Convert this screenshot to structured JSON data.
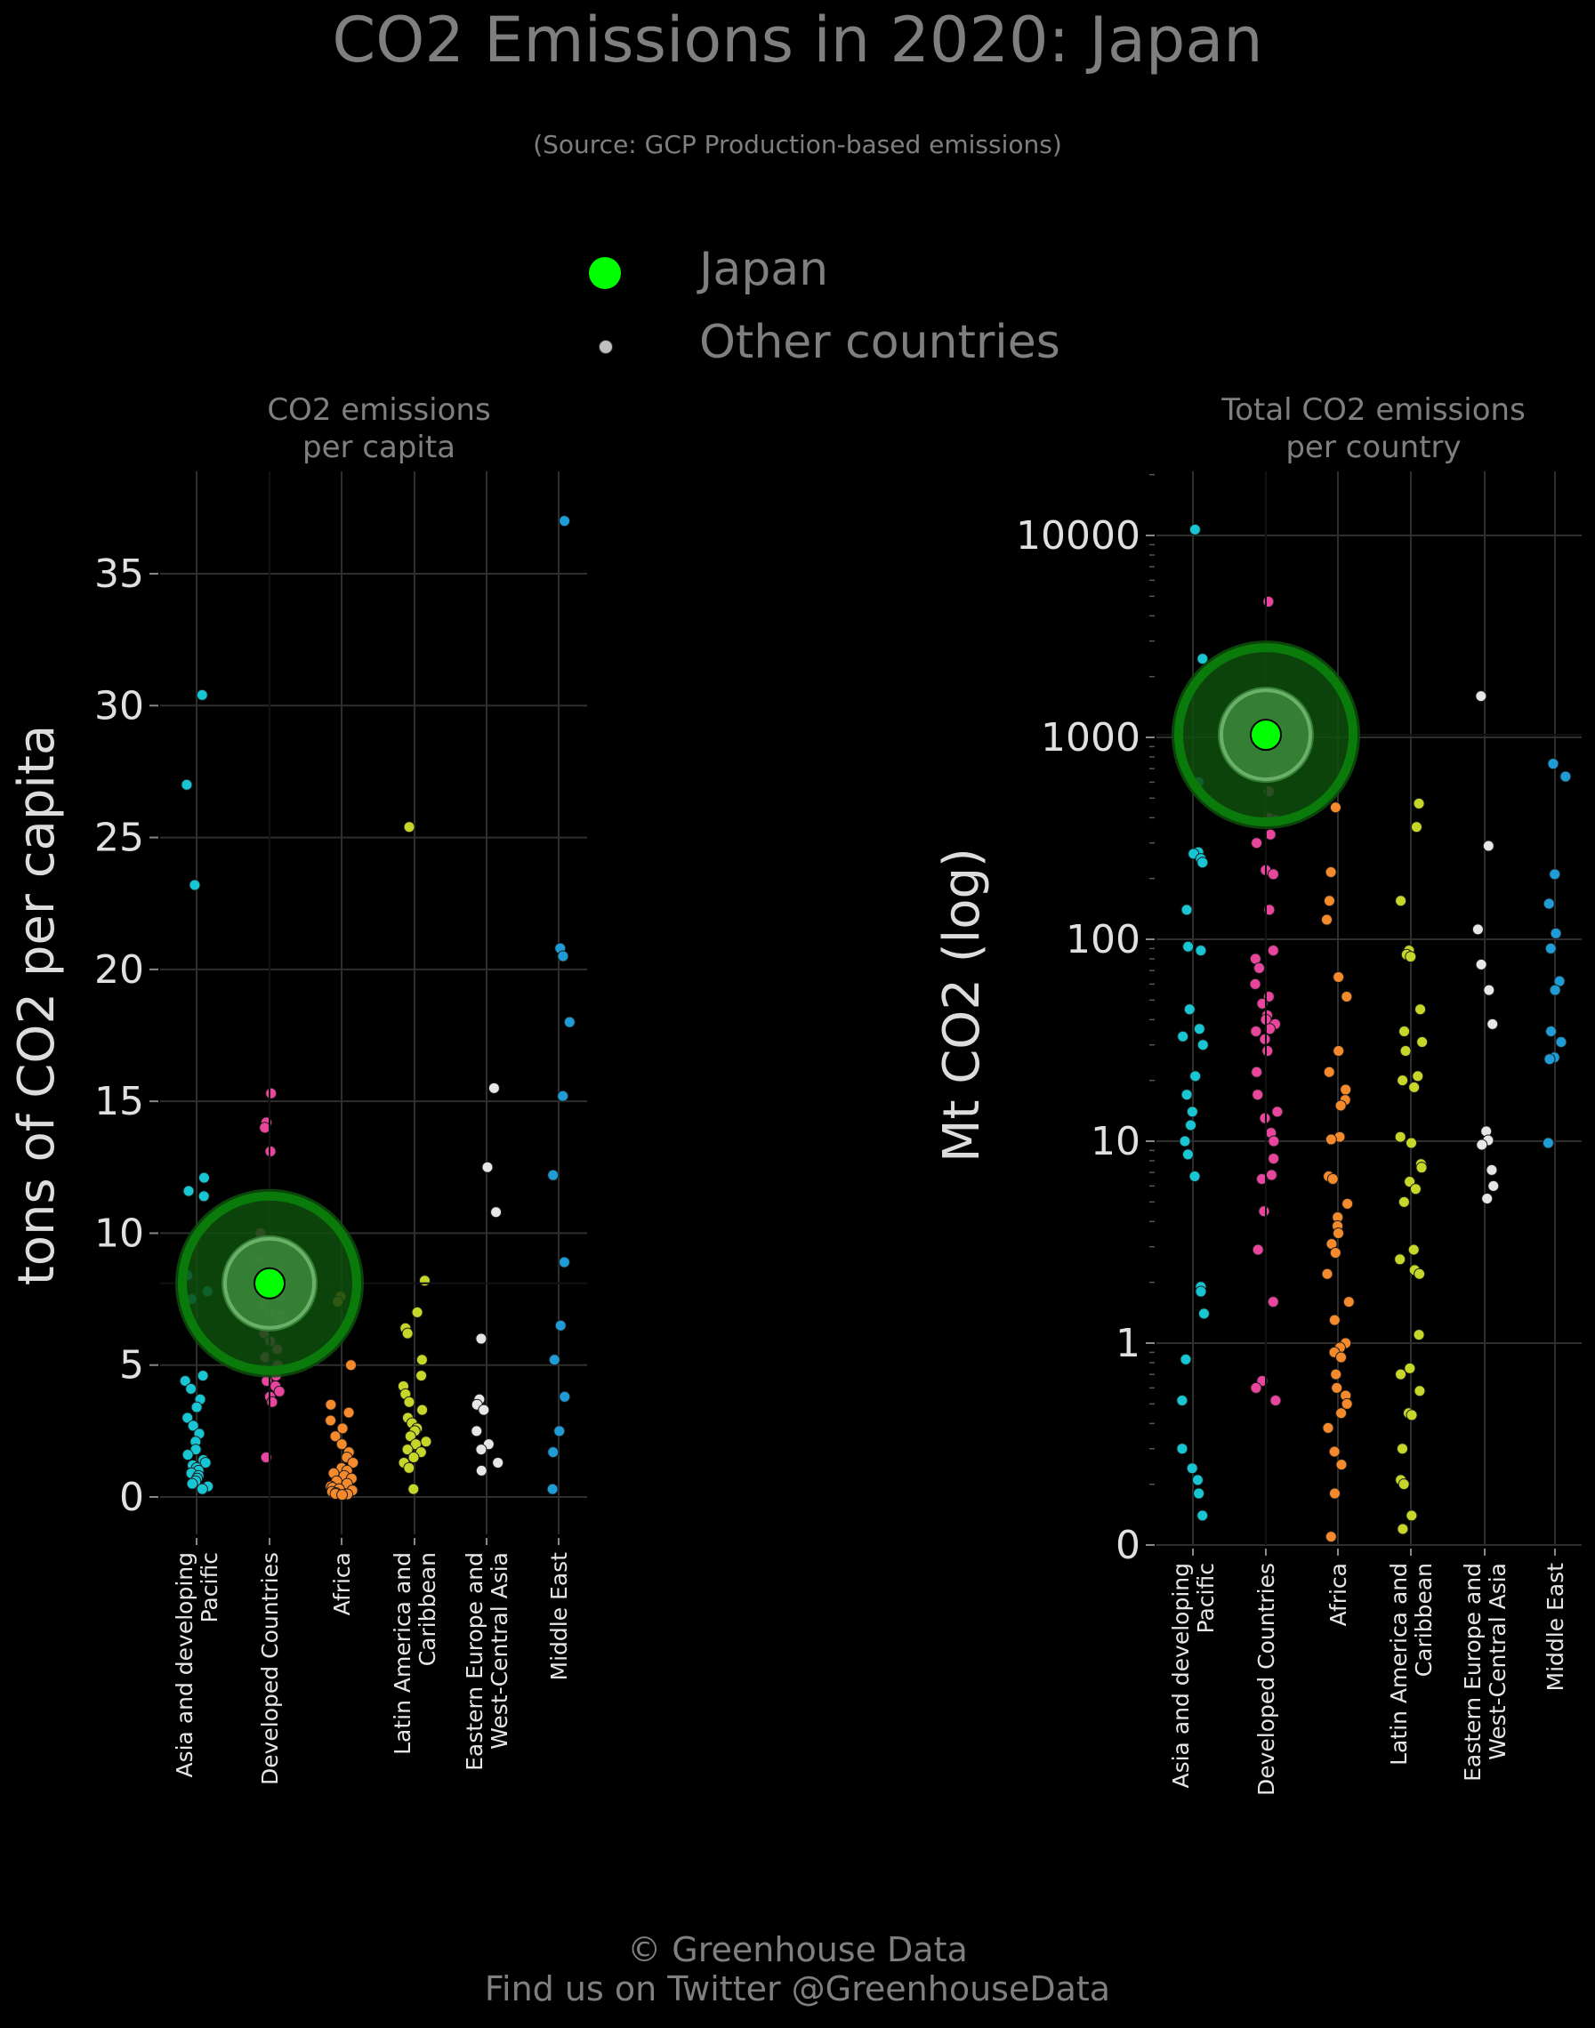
{
  "title": "CO2 Emissions in 2020: Japan",
  "subtitle": "(Source: GCP Production-based emissions)",
  "legend": {
    "highlight_label": "Japan",
    "other_label": "Other countries",
    "highlight_color": "#00ff00",
    "other_color": "#bfbfbf"
  },
  "footer": {
    "line1": "© Greenhouse Data",
    "line2": "Find us on Twitter @GreenhouseData"
  },
  "colors": {
    "Asia and developing Pacific": "#17c6d2",
    "Developed Countries": "#e8459c",
    "Africa": "#f58a2c",
    "Latin America and Caribbean": "#c7d72a",
    "Eastern Europe and West-Central Asia": "#e6e6e6",
    "Middle East": "#1f9bd6"
  },
  "chart_data": [
    {
      "type": "scatter",
      "title": "CO2 emissions\nper capita",
      "ylabel": "tons of CO2 per capita",
      "ylim": [
        0,
        38
      ],
      "yticks": [
        "0",
        "5",
        "10",
        "15",
        "20",
        "25",
        "30",
        "35"
      ],
      "scale": "linear",
      "grid": true,
      "categories": [
        "Asia and developing\nPacific",
        "Developed Countries",
        "Africa",
        "Latin America and\nCaribbean",
        "Eastern Europe and\nWest-Central Asia",
        "Middle East"
      ],
      "highlight": {
        "name": "Japan",
        "category": "Developed Countries",
        "value": 8.1
      },
      "series": [
        {
          "name": "Asia and developing Pacific",
          "values": [
            30.4,
            27.0,
            23.2,
            12.1,
            11.6,
            11.4,
            8.4,
            7.8,
            7.5,
            4.6,
            4.4,
            4.1,
            3.7,
            3.4,
            3.0,
            2.7,
            2.4,
            2.1,
            1.8,
            1.6,
            1.4,
            1.3,
            1.2,
            1.1,
            1.0,
            0.9,
            0.8,
            0.7,
            0.6,
            0.5,
            0.4,
            0.3
          ]
        },
        {
          "name": "Developed Countries",
          "values": [
            15.3,
            14.2,
            14.0,
            13.1,
            10.0,
            9.0,
            8.6,
            8.3,
            7.9,
            7.6,
            7.3,
            7.0,
            6.9,
            6.7,
            6.2,
            5.9,
            5.6,
            5.3,
            5.0,
            4.8,
            4.6,
            4.4,
            4.2,
            4.0,
            3.8,
            3.6,
            1.5
          ]
        },
        {
          "name": "Africa",
          "values": [
            7.6,
            7.4,
            5.0,
            3.5,
            3.2,
            2.9,
            2.6,
            2.3,
            2.0,
            1.7,
            1.5,
            1.3,
            1.1,
            1.0,
            0.9,
            0.8,
            0.7,
            0.6,
            0.5,
            0.4,
            0.35,
            0.3,
            0.25,
            0.2,
            0.15,
            0.12,
            0.1,
            0.08
          ]
        },
        {
          "name": "Latin America and Caribbean",
          "values": [
            25.4,
            8.2,
            7.0,
            6.4,
            6.2,
            5.2,
            4.6,
            4.2,
            3.9,
            3.6,
            3.3,
            3.0,
            2.8,
            2.6,
            2.5,
            2.3,
            2.1,
            2.0,
            1.8,
            1.7,
            1.5,
            1.3,
            1.1,
            0.3
          ]
        },
        {
          "name": "Eastern Europe and West-Central Asia",
          "values": [
            15.5,
            12.5,
            10.8,
            6.0,
            3.7,
            3.5,
            3.3,
            2.5,
            2.0,
            1.8,
            1.3,
            1.0
          ]
        },
        {
          "name": "Middle East",
          "values": [
            37.0,
            20.8,
            20.5,
            18.0,
            15.2,
            12.2,
            8.9,
            6.5,
            5.2,
            3.8,
            2.5,
            1.7,
            0.3
          ]
        }
      ]
    },
    {
      "type": "scatter",
      "title": "Total CO2 emissions\nper country",
      "ylabel": "Mt CO2 (log)",
      "ylim": [
        0,
        20000
      ],
      "yticks": [
        "0",
        "1",
        "10",
        "100",
        "1000",
        "10000"
      ],
      "scale": "log",
      "grid": true,
      "categories": [
        "Asia and developing\nPacific",
        "Developed Countries",
        "Africa",
        "Latin America and\nCaribbean",
        "Eastern Europe and\nWest-Central Asia",
        "Middle East"
      ],
      "highlight": {
        "name": "Japan",
        "category": "Developed Countries",
        "value": 1030
      },
      "series": [
        {
          "name": "Asia and developing Pacific",
          "values": [
            10700,
            2450,
            600,
            270,
            265,
            250,
            240,
            140,
            92,
            88,
            45,
            36,
            33,
            30,
            21,
            17,
            14,
            12,
            10,
            8.6,
            6.7,
            1.9,
            1.8,
            1.4,
            0.83,
            0.52,
            0.3,
            0.24,
            0.21,
            0.18,
            0.14
          ]
        },
        {
          "name": "Developed Countries",
          "values": [
            4700,
            650,
            540,
            400,
            390,
            330,
            300,
            220,
            210,
            140,
            88,
            80,
            72,
            60,
            52,
            48,
            42,
            40,
            38,
            36,
            35,
            32,
            28,
            22,
            17,
            14,
            13,
            11,
            10,
            8.2,
            6.8,
            6.5,
            4.5,
            2.9,
            1.6,
            0.65,
            0.6,
            0.52
          ]
        },
        {
          "name": "Africa",
          "values": [
            450,
            215,
            155,
            125,
            65,
            52,
            28,
            22,
            18,
            16,
            15,
            10.5,
            10.2,
            6.7,
            6.5,
            4.9,
            4.2,
            3.8,
            3.5,
            3.1,
            2.8,
            2.2,
            1.6,
            1.3,
            1.0,
            0.95,
            0.9,
            0.85,
            0.7,
            0.6,
            0.55,
            0.5,
            0.45,
            0.38,
            0.29,
            0.25,
            0.18,
            0.11
          ]
        },
        {
          "name": "Latin America and Caribbean",
          "values": [
            470,
            360,
            155,
            88,
            84,
            82,
            45,
            35,
            31,
            28,
            21,
            20,
            18.5,
            10.5,
            9.8,
            7.7,
            7.4,
            6.3,
            5.8,
            5.0,
            2.9,
            2.6,
            2.3,
            2.2,
            1.1,
            0.75,
            0.7,
            0.58,
            0.45,
            0.44,
            0.3,
            0.21,
            0.2,
            0.14,
            0.12
          ]
        },
        {
          "name": "Eastern Europe and West-Central Asia",
          "values": [
            1600,
            290,
            112,
            75,
            56,
            38,
            11.2,
            10.1,
            9.6,
            7.2,
            6.0,
            5.2
          ]
        },
        {
          "name": "Middle East",
          "values": [
            740,
            640,
            210,
            150,
            107,
            90,
            62,
            56,
            35,
            31,
            26,
            25.5,
            9.8
          ]
        }
      ]
    }
  ]
}
